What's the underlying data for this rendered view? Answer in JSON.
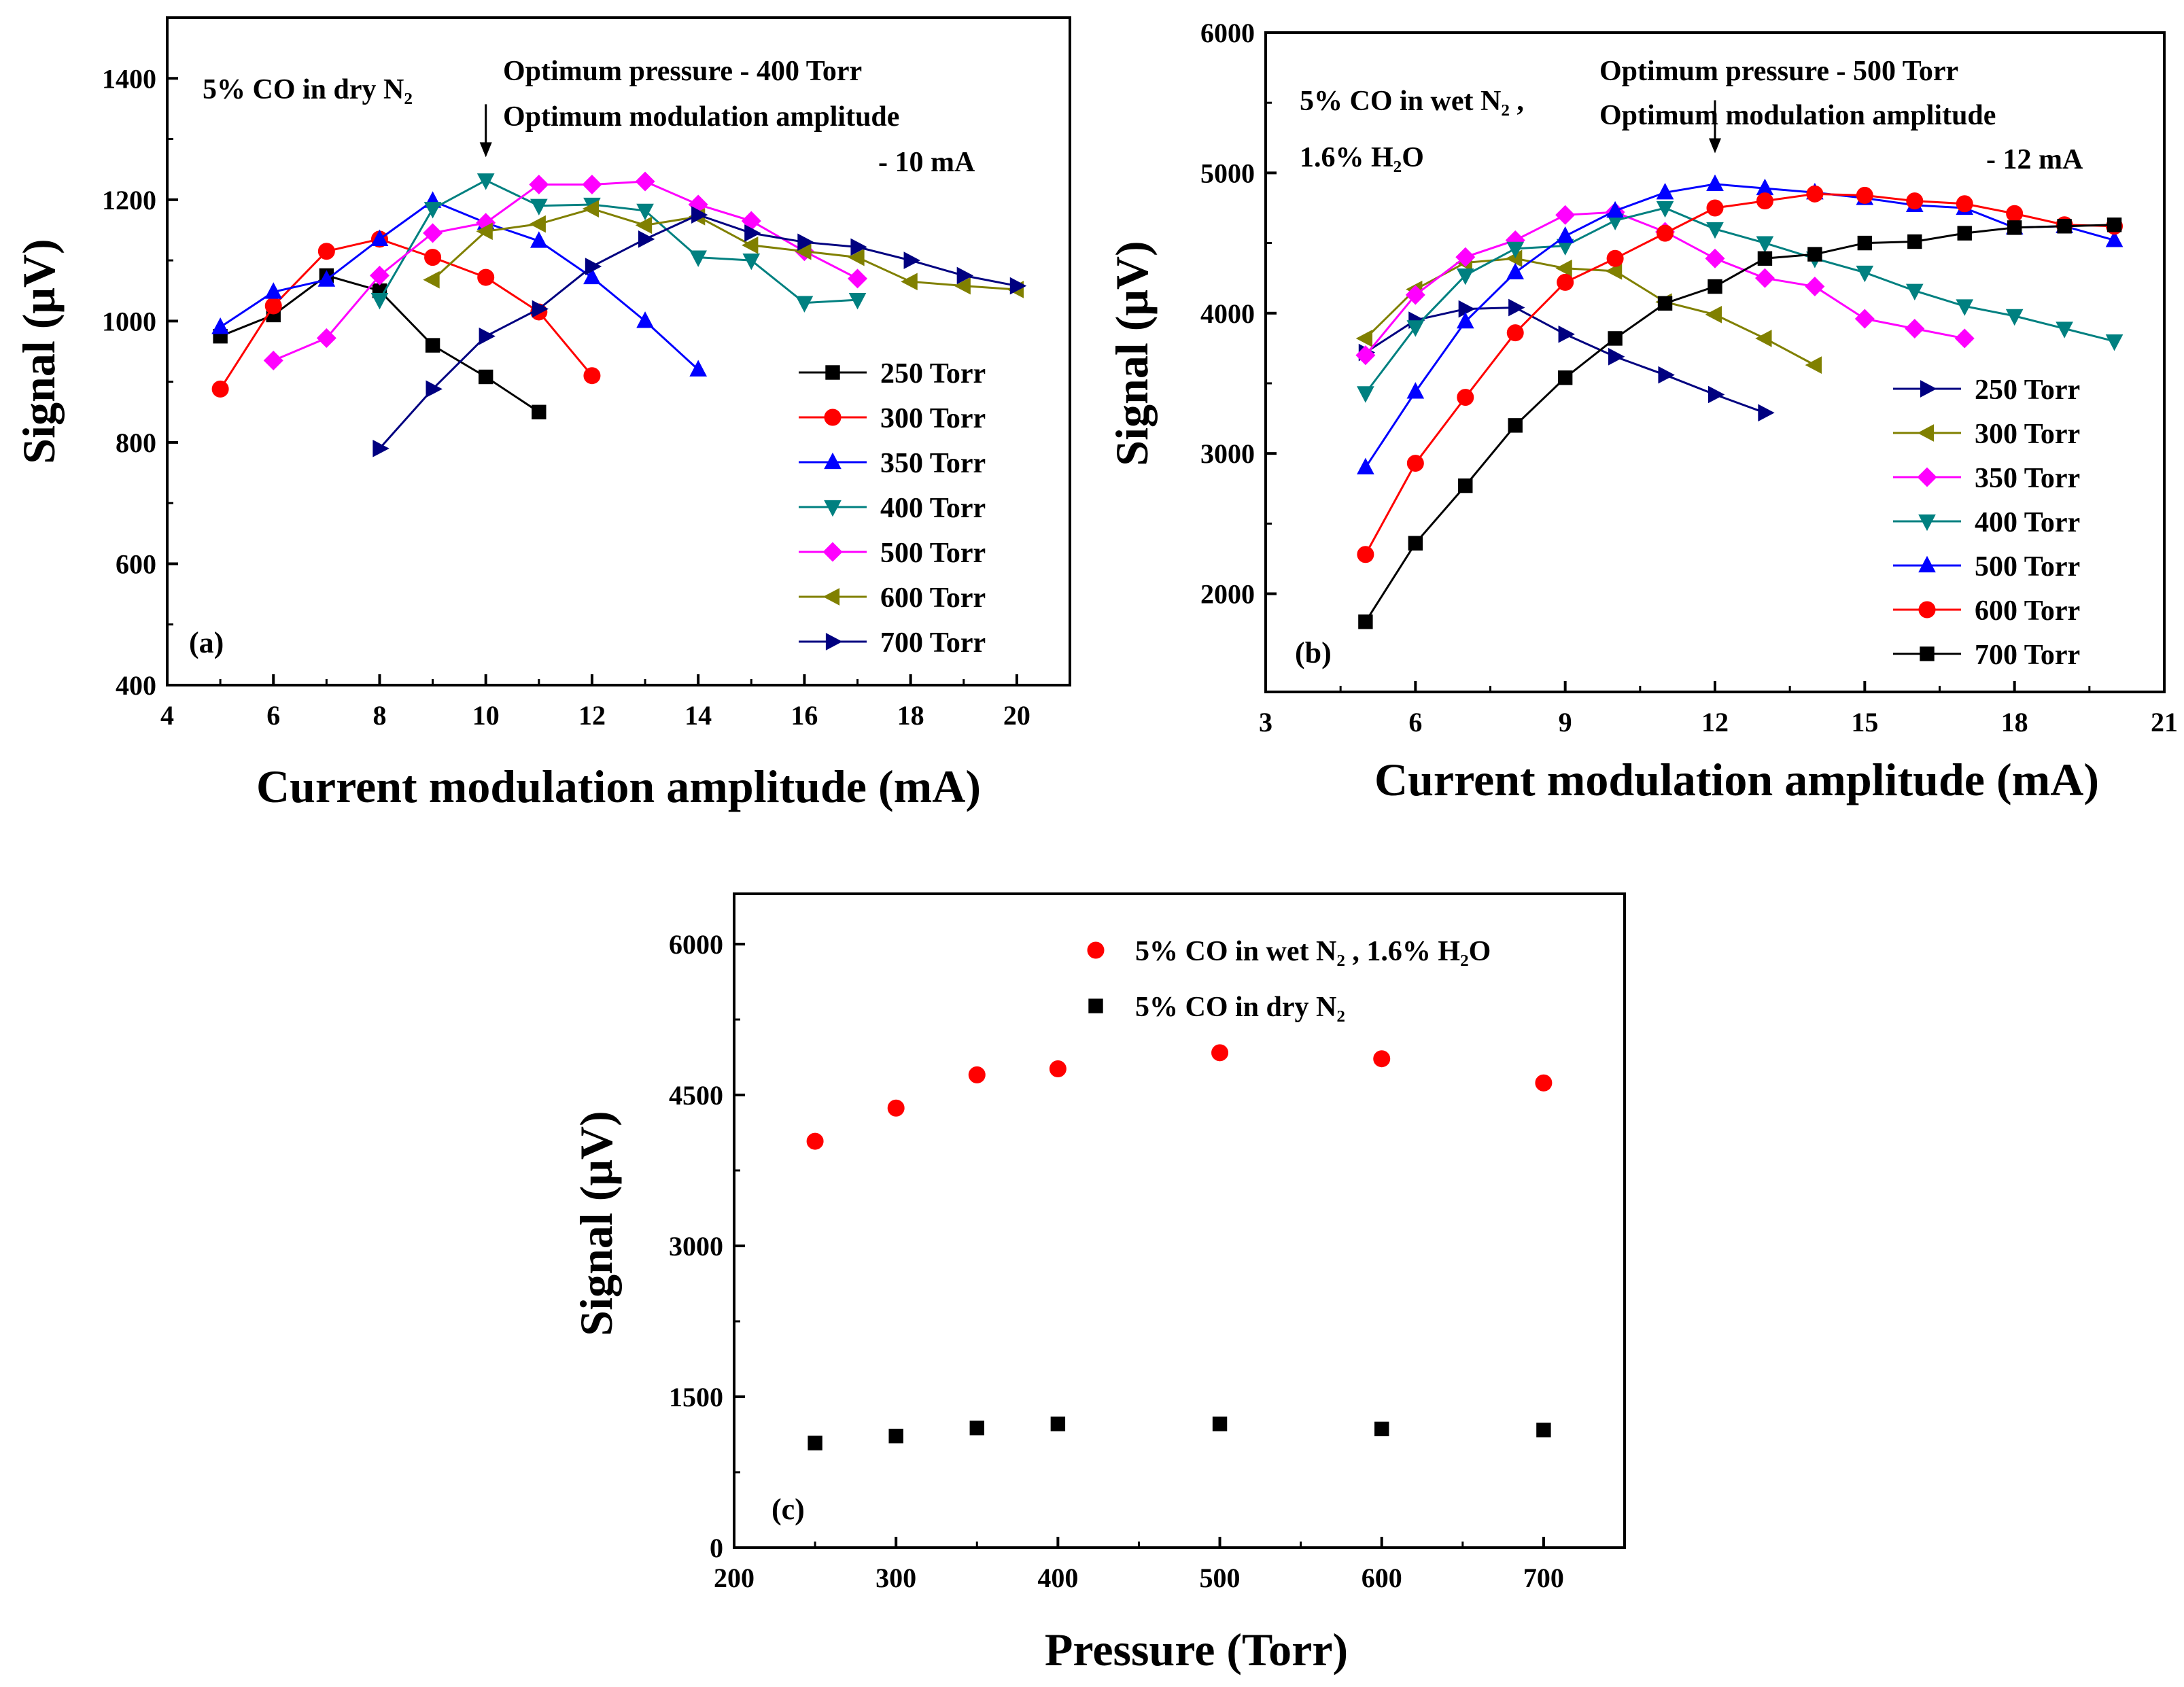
{
  "chart_data": [
    {
      "id": "a",
      "type": "line",
      "panel_label": "(a)",
      "xlabel": "Current modulation amplitude (mA)",
      "ylabel": "Signal (μV)",
      "xlim": [
        4,
        21
      ],
      "ylim": [
        400,
        1500
      ],
      "xticks": [
        4,
        6,
        8,
        10,
        12,
        14,
        16,
        18,
        20
      ],
      "yticks": [
        400,
        600,
        800,
        1000,
        1200,
        1400
      ],
      "annotations": [
        "5% CO in dry N₂",
        "Optimum pressure - 400 Torr",
        "Optimum modulation amplitude",
        "- 10 mA"
      ],
      "arrow_at": {
        "x": 10,
        "y": 1270
      },
      "legend_position": "bottom-right",
      "series": [
        {
          "name": "250 Torr",
          "color": "#000000",
          "marker": "square",
          "x": [
            5,
            6,
            7,
            8,
            9,
            10,
            11
          ],
          "y": [
            975,
            1010,
            1075,
            1050,
            960,
            908,
            850
          ]
        },
        {
          "name": "300 Torr",
          "color": "#ff0000",
          "marker": "circle",
          "x": [
            5,
            6,
            7,
            8,
            9,
            10,
            11,
            12
          ],
          "y": [
            888,
            1025,
            1115,
            1135,
            1105,
            1072,
            1015,
            910
          ]
        },
        {
          "name": "350 Torr",
          "color": "#0000ff",
          "marker": "triangle-up",
          "x": [
            5,
            6,
            7,
            8,
            9,
            10,
            11,
            12,
            13,
            14
          ],
          "y": [
            990,
            1048,
            1068,
            1135,
            1198,
            1162,
            1132,
            1072,
            1000,
            920
          ]
        },
        {
          "name": "400 Torr",
          "color": "#008080",
          "marker": "triangle-down",
          "x": [
            8,
            9,
            10,
            11,
            12,
            13,
            14,
            15,
            16,
            17
          ],
          "y": [
            1035,
            1185,
            1232,
            1190,
            1192,
            1182,
            1105,
            1100,
            1030,
            1035
          ]
        },
        {
          "name": "500 Torr",
          "color": "#ff00ff",
          "marker": "diamond",
          "x": [
            6,
            7,
            8,
            9,
            10,
            11,
            12,
            13,
            14,
            15,
            16,
            17
          ],
          "y": [
            935,
            972,
            1075,
            1145,
            1162,
            1225,
            1225,
            1230,
            1192,
            1165,
            1115,
            1070
          ]
        },
        {
          "name": "600 Torr",
          "color": "#808000",
          "marker": "triangle-left",
          "x": [
            9,
            10,
            11,
            12,
            13,
            14,
            15,
            16,
            17,
            18,
            19,
            20
          ],
          "y": [
            1068,
            1148,
            1160,
            1185,
            1158,
            1172,
            1125,
            1115,
            1105,
            1065,
            1058,
            1052
          ]
        },
        {
          "name": "700 Torr",
          "color": "#000080",
          "marker": "triangle-right",
          "x": [
            8,
            9,
            10,
            11,
            12,
            13,
            14,
            15,
            16,
            17,
            18,
            19,
            20
          ],
          "y": [
            790,
            888,
            975,
            1020,
            1090,
            1135,
            1175,
            1145,
            1130,
            1122,
            1100,
            1075,
            1058
          ]
        }
      ]
    },
    {
      "id": "b",
      "type": "line",
      "panel_label": "(b)",
      "xlabel": "Current modulation amplitude (mA)",
      "ylabel": "Signal (μV)",
      "xlim": [
        3,
        21
      ],
      "ylim": [
        1300,
        6000
      ],
      "xticks": [
        3,
        6,
        9,
        12,
        15,
        18,
        21
      ],
      "yticks": [
        2000,
        3000,
        4000,
        5000,
        6000
      ],
      "annotations": [
        "5% CO in wet N₂ ,",
        "1.6% H₂O",
        "Optimum pressure - 500 Torr",
        "Optimum modulation amplitude",
        "- 12 mA"
      ],
      "arrow_at": {
        "x": 12,
        "y": 5140
      },
      "legend_position": "bottom-right",
      "series": [
        {
          "name": "250 Torr",
          "color": "#000080",
          "marker": "triangle-right",
          "x": [
            5,
            6,
            7,
            8,
            9,
            10,
            11,
            12,
            13
          ],
          "y": [
            3720,
            3950,
            4030,
            4040,
            3850,
            3690,
            3560,
            3420,
            3290
          ]
        },
        {
          "name": "300 Torr",
          "color": "#808000",
          "marker": "triangle-left",
          "x": [
            5,
            6,
            7,
            8,
            9,
            10,
            11,
            12,
            13,
            14
          ],
          "y": [
            3820,
            4170,
            4360,
            4390,
            4320,
            4300,
            4080,
            3990,
            3820,
            3630
          ]
        },
        {
          "name": "350 Torr",
          "color": "#ff00ff",
          "marker": "diamond",
          "x": [
            5,
            6,
            7,
            8,
            9,
            10,
            11,
            12,
            13,
            14,
            15,
            16,
            17
          ],
          "y": [
            3700,
            4130,
            4400,
            4520,
            4700,
            4720,
            4580,
            4390,
            4250,
            4190,
            3960,
            3890,
            3820
          ]
        },
        {
          "name": "400 Torr",
          "color": "#008080",
          "marker": "triangle-down",
          "x": [
            5,
            6,
            7,
            8,
            9,
            10,
            11,
            12,
            13,
            14,
            15,
            16,
            17,
            18,
            19,
            20
          ],
          "y": [
            3430,
            3900,
            4270,
            4460,
            4480,
            4660,
            4750,
            4600,
            4500,
            4390,
            4290,
            4160,
            4050,
            3980,
            3890,
            3800
          ]
        },
        {
          "name": "500 Torr",
          "color": "#0000ff",
          "marker": "triangle-up",
          "x": [
            5,
            6,
            7,
            8,
            9,
            10,
            11,
            12,
            13,
            14,
            15,
            16,
            17,
            18,
            19,
            20
          ],
          "y": [
            2900,
            3440,
            3940,
            4290,
            4550,
            4730,
            4860,
            4920,
            4890,
            4860,
            4820,
            4770,
            4750,
            4610,
            4620,
            4520
          ]
        },
        {
          "name": "600 Torr",
          "color": "#ff0000",
          "marker": "circle",
          "x": [
            5,
            6,
            7,
            8,
            9,
            10,
            11,
            12,
            13,
            14,
            15,
            16,
            17,
            18,
            19,
            20
          ],
          "y": [
            2280,
            2930,
            3400,
            3860,
            4220,
            4390,
            4570,
            4750,
            4800,
            4850,
            4840,
            4800,
            4780,
            4710,
            4630,
            4620
          ]
        },
        {
          "name": "700 Torr",
          "color": "#000000",
          "marker": "square",
          "x": [
            5,
            6,
            7,
            8,
            9,
            10,
            11,
            12,
            13,
            14,
            15,
            16,
            17,
            18,
            19,
            20
          ],
          "y": [
            1800,
            2360,
            2770,
            3200,
            3540,
            3820,
            4070,
            4190,
            4390,
            4420,
            4500,
            4510,
            4570,
            4610,
            4620,
            4630
          ]
        }
      ]
    },
    {
      "id": "c",
      "type": "scatter",
      "panel_label": "(c)",
      "xlabel": "Pressure (Torr)",
      "ylabel": "Signal (μV)",
      "xlim": [
        200,
        750
      ],
      "ylim": [
        0,
        6500
      ],
      "xticks": [
        200,
        300,
        400,
        500,
        600,
        700
      ],
      "yticks": [
        0,
        1500,
        3000,
        4500,
        6000
      ],
      "legend_position": "top-right",
      "series": [
        {
          "name": "5% CO in wet N₂ ,  1.6% H₂O",
          "color": "#ff0000",
          "marker": "circle",
          "x": [
            250,
            300,
            350,
            400,
            500,
            600,
            700
          ],
          "y": [
            4040,
            4370,
            4700,
            4760,
            4920,
            4860,
            4620
          ]
        },
        {
          "name": "5% CO in  dry N₂",
          "color": "#000000",
          "marker": "square",
          "x": [
            250,
            300,
            350,
            400,
            500,
            600,
            700
          ],
          "y": [
            1040,
            1110,
            1190,
            1230,
            1230,
            1180,
            1170
          ]
        }
      ]
    }
  ]
}
